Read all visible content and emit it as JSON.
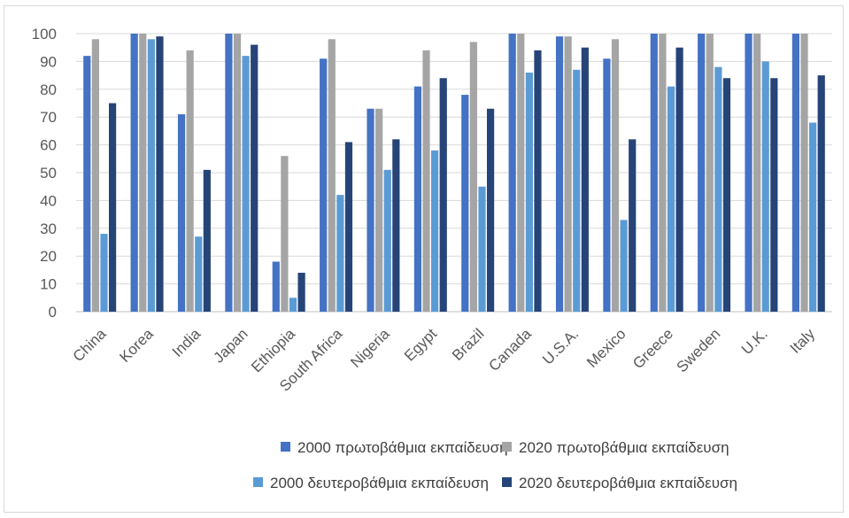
{
  "chart_data": {
    "type": "bar",
    "title": "",
    "xlabel": "",
    "ylabel": "",
    "ylim": [
      0,
      100
    ],
    "yticks": [
      0,
      10,
      20,
      30,
      40,
      50,
      60,
      70,
      80,
      90,
      100
    ],
    "grid": "horizontal",
    "legend_position": "bottom",
    "categories": [
      "China",
      "Korea",
      "India",
      "Japan",
      "Ethiopia",
      "South Africa",
      "Nigeria",
      "Egypt",
      "Brazil",
      "Canada",
      "U.S.A.",
      "Mexico",
      "Greece",
      "Sweden",
      "U.K.",
      "Italy"
    ],
    "series": [
      {
        "name": "2000 πρωτοβάθμια εκπαίδευση",
        "color": "#4472c4",
        "values": [
          92,
          100,
          71,
          100,
          18,
          91,
          73,
          81,
          78,
          100,
          99,
          91,
          100,
          100,
          100,
          100
        ]
      },
      {
        "name": "2020 πρωτοβάθμια εκπαίδευση",
        "color": "#a5a5a5",
        "values": [
          98,
          100,
          94,
          100,
          56,
          98,
          73,
          94,
          97,
          100,
          99,
          98,
          100,
          100,
          100,
          100
        ]
      },
      {
        "name": "2000 δευτεροβάθμια εκπαίδευση",
        "color": "#5b9bd5",
        "values": [
          28,
          98,
          27,
          92,
          5,
          42,
          51,
          58,
          45,
          86,
          87,
          33,
          81,
          88,
          90,
          68
        ]
      },
      {
        "name": "2020 δευτεροβάθμια εκπαίδευση",
        "color": "#264478",
        "values": [
          75,
          99,
          51,
          96,
          14,
          61,
          62,
          84,
          73,
          94,
          95,
          62,
          95,
          84,
          84,
          85
        ]
      }
    ]
  }
}
